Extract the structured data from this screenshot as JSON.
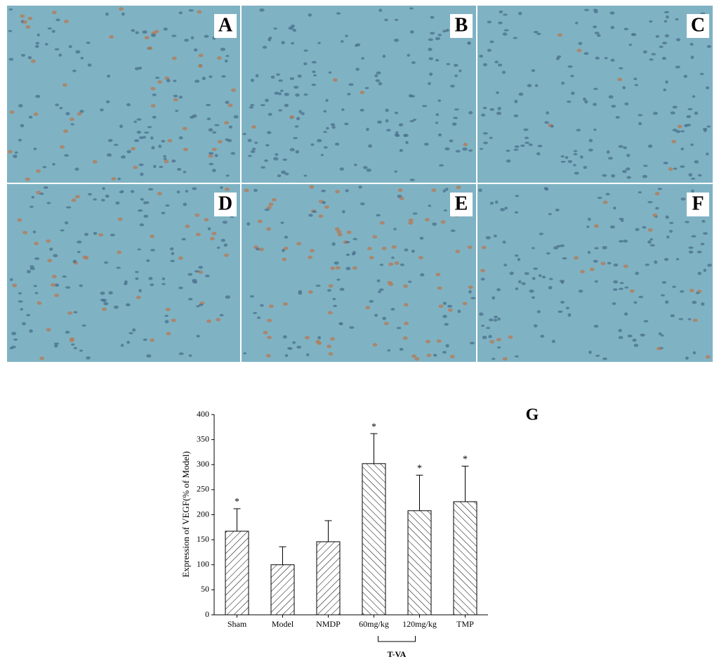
{
  "panels": {
    "labels": [
      "A",
      "B",
      "C",
      "D",
      "E",
      "F"
    ]
  },
  "chart_data": {
    "type": "bar",
    "panel_label": "G",
    "y_label": "Expression of VEGF(% of Model)",
    "categories": [
      "Sham",
      "Model",
      "NMDP",
      "60mg/kg",
      "120mg/kg",
      "TMP"
    ],
    "values": [
      167,
      100,
      146,
      302,
      208,
      226
    ],
    "errors": [
      45,
      36,
      42,
      60,
      71,
      71
    ],
    "annotations": [
      "*",
      null,
      null,
      "*",
      "*",
      "*"
    ],
    "hatch": [
      "/",
      "/",
      "/",
      "\\",
      "\\",
      "\\"
    ],
    "group_label": "T-VA",
    "ylim": [
      0,
      400
    ],
    "yticks": [
      0,
      50,
      100,
      150,
      200,
      250,
      300,
      350,
      400
    ]
  }
}
